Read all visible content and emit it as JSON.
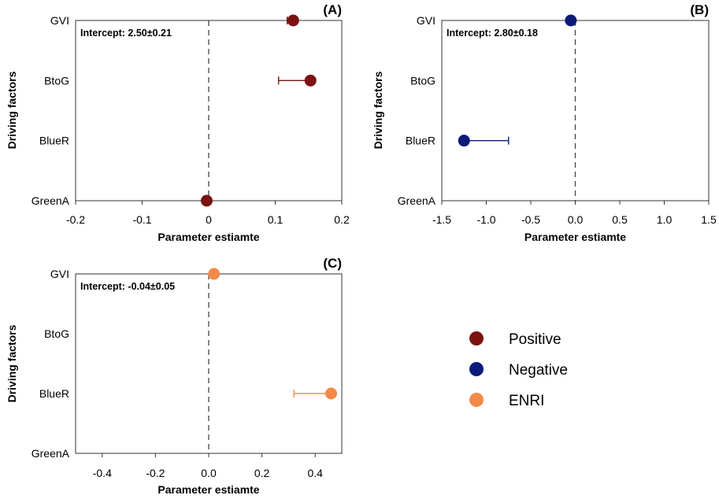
{
  "legend": {
    "items": [
      {
        "label": "Positive",
        "color": "#7b1212"
      },
      {
        "label": "Negative",
        "color": "#0c1a7a"
      },
      {
        "label": "ENRI",
        "color": "#f28a4a"
      }
    ]
  },
  "chart_data": [
    {
      "type": "scatter",
      "panel_label": "(A)",
      "xlabel": "Parameter estiamte",
      "ylabel": "Driving factors",
      "categories": [
        "GVI",
        "BtoG",
        "BlueR",
        "GreenA"
      ],
      "xlim": [
        -0.2,
        0.2
      ],
      "xticks": [
        -0.2,
        -0.1,
        0.0,
        0.1,
        0.2
      ],
      "xtick_labels": [
        "-0.2",
        "-0.1",
        "0",
        "0.1",
        "0.2"
      ],
      "intercept_text": "Intercept: 2.50±0.21",
      "ref_line_x": 0,
      "color": "#7b1212",
      "points": [
        {
          "category": "GVI",
          "value": 0.127,
          "err_low": 0.118,
          "err_high": 0.127
        },
        {
          "category": "BtoG",
          "value": 0.153,
          "err_low": 0.105,
          "err_high": 0.153
        },
        {
          "category": "GreenA",
          "value": -0.003,
          "err_low": -0.003,
          "err_high": -0.003
        }
      ]
    },
    {
      "type": "scatter",
      "panel_label": "(B)",
      "xlabel": "Parameter estiamte",
      "ylabel": "Driving factors",
      "categories": [
        "GVI",
        "BtoG",
        "BlueR",
        "GreenA"
      ],
      "xlim": [
        -1.5,
        1.5
      ],
      "xticks": [
        -1.5,
        -1.0,
        -0.5,
        0.0,
        0.5,
        1.0,
        1.5
      ],
      "xtick_labels": [
        "-1.5",
        "-1.0",
        "-0.5",
        "0.0",
        "0.5",
        "1.0",
        "1.5"
      ],
      "intercept_text": "Intercept: 2.80±0.18",
      "ref_line_x": 0,
      "color": "#0c1a7a",
      "points": [
        {
          "category": "GVI",
          "value": -0.05,
          "err_low": -0.05,
          "err_high": -0.05
        },
        {
          "category": "BlueR",
          "value": -1.25,
          "err_low": -1.25,
          "err_high": -0.75
        }
      ]
    },
    {
      "type": "scatter",
      "panel_label": "(C)",
      "xlabel": "Parameter estiamte",
      "ylabel": "Driving factors",
      "categories": [
        "GVI",
        "BtoG",
        "BlueR",
        "GreenA"
      ],
      "xlim": [
        -0.5,
        0.5
      ],
      "xticks": [
        -0.4,
        -0.2,
        0.0,
        0.2,
        0.4
      ],
      "xtick_labels": [
        "-0.4",
        "-0.2",
        "0.0",
        "0.2",
        "0.4"
      ],
      "intercept_text": "Intercept: -0.04±0.05",
      "ref_line_x": 0,
      "color": "#f28a4a",
      "points": [
        {
          "category": "GVI",
          "value": 0.02,
          "err_low": 0.02,
          "err_high": 0.02
        },
        {
          "category": "BlueR",
          "value": 0.46,
          "err_low": 0.32,
          "err_high": 0.46
        }
      ]
    }
  ]
}
